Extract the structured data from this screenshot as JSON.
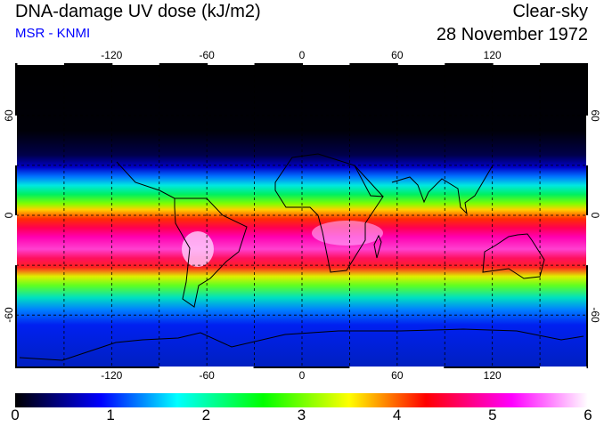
{
  "header": {
    "title": "DNA-damage UV dose (kJ/m2)",
    "source": "MSR - KNMI",
    "condition": "Clear-sky",
    "date": "28 November 1972"
  },
  "axes": {
    "lon_labels": [
      "-120",
      "-60",
      "0",
      "60",
      "120"
    ],
    "lat_labels": [
      "60",
      "0",
      "-60"
    ]
  },
  "colorbar": {
    "ticks": [
      "0",
      "1",
      "2",
      "3",
      "4",
      "5",
      "6"
    ],
    "stops": [
      {
        "v": 0,
        "c": "#000000"
      },
      {
        "v": 0.9,
        "c": "#0000ff"
      },
      {
        "v": 1.7,
        "c": "#00ffff"
      },
      {
        "v": 2.6,
        "c": "#00ff00"
      },
      {
        "v": 3.5,
        "c": "#ffff00"
      },
      {
        "v": 4.3,
        "c": "#ff0000"
      },
      {
        "v": 5.2,
        "c": "#ff00ff"
      },
      {
        "v": 6,
        "c": "#ffffff"
      }
    ]
  }
}
